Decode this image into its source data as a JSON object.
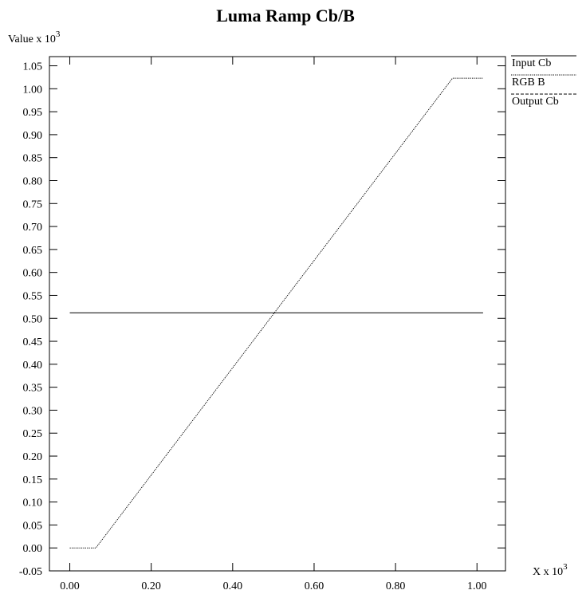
{
  "chart_data": {
    "type": "line",
    "title": "Luma Ramp Cb/B",
    "ylabel": {
      "base": "Value x 10",
      "exp": "3"
    },
    "xlabel": {
      "base": "X x 10",
      "exp": "3"
    },
    "xlim": [
      -0.05,
      1.07
    ],
    "ylim": [
      -0.05,
      1.07
    ],
    "x_ticks": [
      0.0,
      0.2,
      0.4,
      0.6,
      0.8,
      1.0
    ],
    "x_tick_labels": [
      "0.00",
      "0.20",
      "0.40",
      "0.60",
      "0.80",
      "1.00"
    ],
    "y_ticks": [
      -0.05,
      0.0,
      0.05,
      0.1,
      0.15,
      0.2,
      0.25,
      0.3,
      0.35,
      0.4,
      0.45,
      0.5,
      0.55,
      0.6,
      0.65,
      0.7,
      0.75,
      0.8,
      0.85,
      0.9,
      0.95,
      1.0,
      1.05
    ],
    "y_tick_labels": [
      "-0.05",
      "0.00",
      "0.05",
      "0.10",
      "0.15",
      "0.20",
      "0.25",
      "0.30",
      "0.35",
      "0.40",
      "0.45",
      "0.50",
      "0.55",
      "0.60",
      "0.65",
      "0.70",
      "0.75",
      "0.80",
      "0.85",
      "0.90",
      "0.95",
      "1.00",
      "1.05"
    ],
    "grid": false,
    "legend_position": "right",
    "series": [
      {
        "name": "Input Cb",
        "dash": "solid",
        "x": [
          0.0,
          1.015
        ],
        "y": [
          0.512,
          0.512
        ]
      },
      {
        "name": "RGB B",
        "dash": "dotted",
        "x": [
          0.0,
          0.064,
          0.94,
          1.015
        ],
        "y": [
          0.0,
          0.0,
          1.023,
          1.023
        ]
      },
      {
        "name": "Output Cb",
        "dash": "dashed",
        "x": [],
        "y": []
      }
    ]
  }
}
